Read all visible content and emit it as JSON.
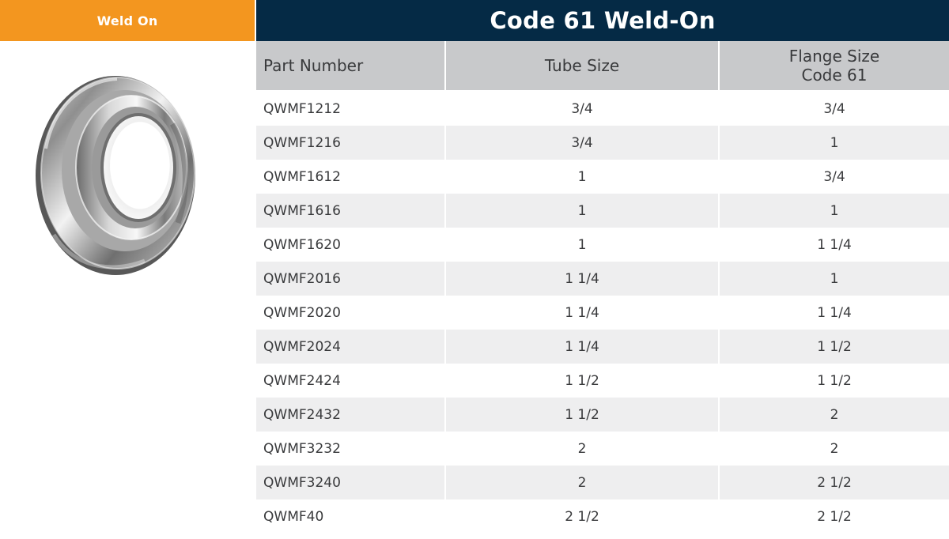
{
  "sidebar": {
    "tab_label": "Weld On",
    "image_icon": "weld-on-flange-ring-image"
  },
  "header": {
    "title": "Code 61 Weld-On"
  },
  "table": {
    "columns": {
      "part_number": "Part Number",
      "tube_size": "Tube Size",
      "flange_size_line1": "Flange Size",
      "flange_size_line2": "Code 61"
    },
    "rows": [
      {
        "part": "QWMF1212",
        "tube": "3/4",
        "flange": "3/4"
      },
      {
        "part": "QWMF1216",
        "tube": "3/4",
        "flange": "1"
      },
      {
        "part": "QWMF1612",
        "tube": "1",
        "flange": "3/4"
      },
      {
        "part": "QWMF1616",
        "tube": "1",
        "flange": "1"
      },
      {
        "part": "QWMF1620",
        "tube": "1",
        "flange": "1 1/4"
      },
      {
        "part": "QWMF2016",
        "tube": "1 1/4",
        "flange": "1"
      },
      {
        "part": "QWMF2020",
        "tube": "1 1/4",
        "flange": "1 1/4"
      },
      {
        "part": "QWMF2024",
        "tube": "1 1/4",
        "flange": "1 1/2"
      },
      {
        "part": "QWMF2424",
        "tube": "1 1/2",
        "flange": "1 1/2"
      },
      {
        "part": "QWMF2432",
        "tube": "1 1/2",
        "flange": "2"
      },
      {
        "part": "QWMF3232",
        "tube": "2",
        "flange": "2"
      },
      {
        "part": "QWMF3240",
        "tube": "2",
        "flange": "2 1/2"
      },
      {
        "part": "QWMF40",
        "tube": "2 1/2",
        "flange": "2 1/2"
      }
    ]
  },
  "colors": {
    "orange_tab": "#f3961f",
    "navy_title": "#052a45",
    "header_gray": "#c8c9cb",
    "row_alt": "#eeeeef",
    "text": "#393a3c"
  }
}
